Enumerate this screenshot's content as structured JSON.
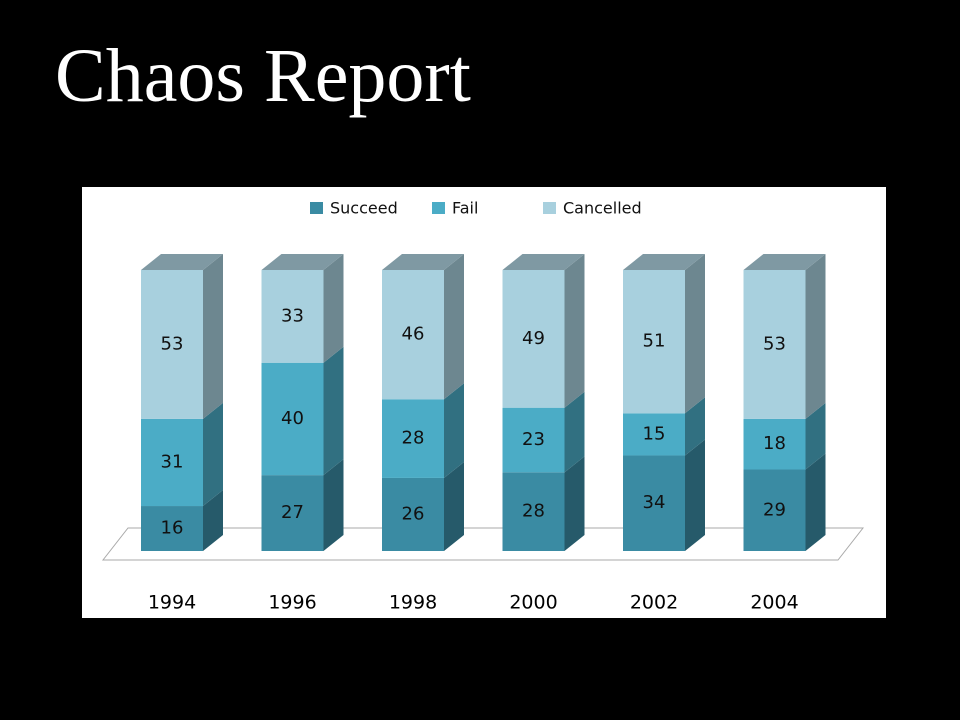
{
  "chart_data": {
    "type": "bar",
    "stacked": true,
    "title": "Chaos Report",
    "categories": [
      "1994",
      "1996",
      "1998",
      "2000",
      "2002",
      "2004"
    ],
    "series": [
      {
        "name": "Succeed",
        "color": "#3a8ba3",
        "values": [
          16,
          27,
          26,
          28,
          34,
          29
        ]
      },
      {
        "name": "Fail",
        "color": "#4bacc6",
        "values": [
          31,
          40,
          28,
          23,
          15,
          18
        ]
      },
      {
        "name": "Cancelled",
        "color": "#a8d0de",
        "values": [
          53,
          33,
          46,
          49,
          51,
          53
        ]
      }
    ]
  }
}
